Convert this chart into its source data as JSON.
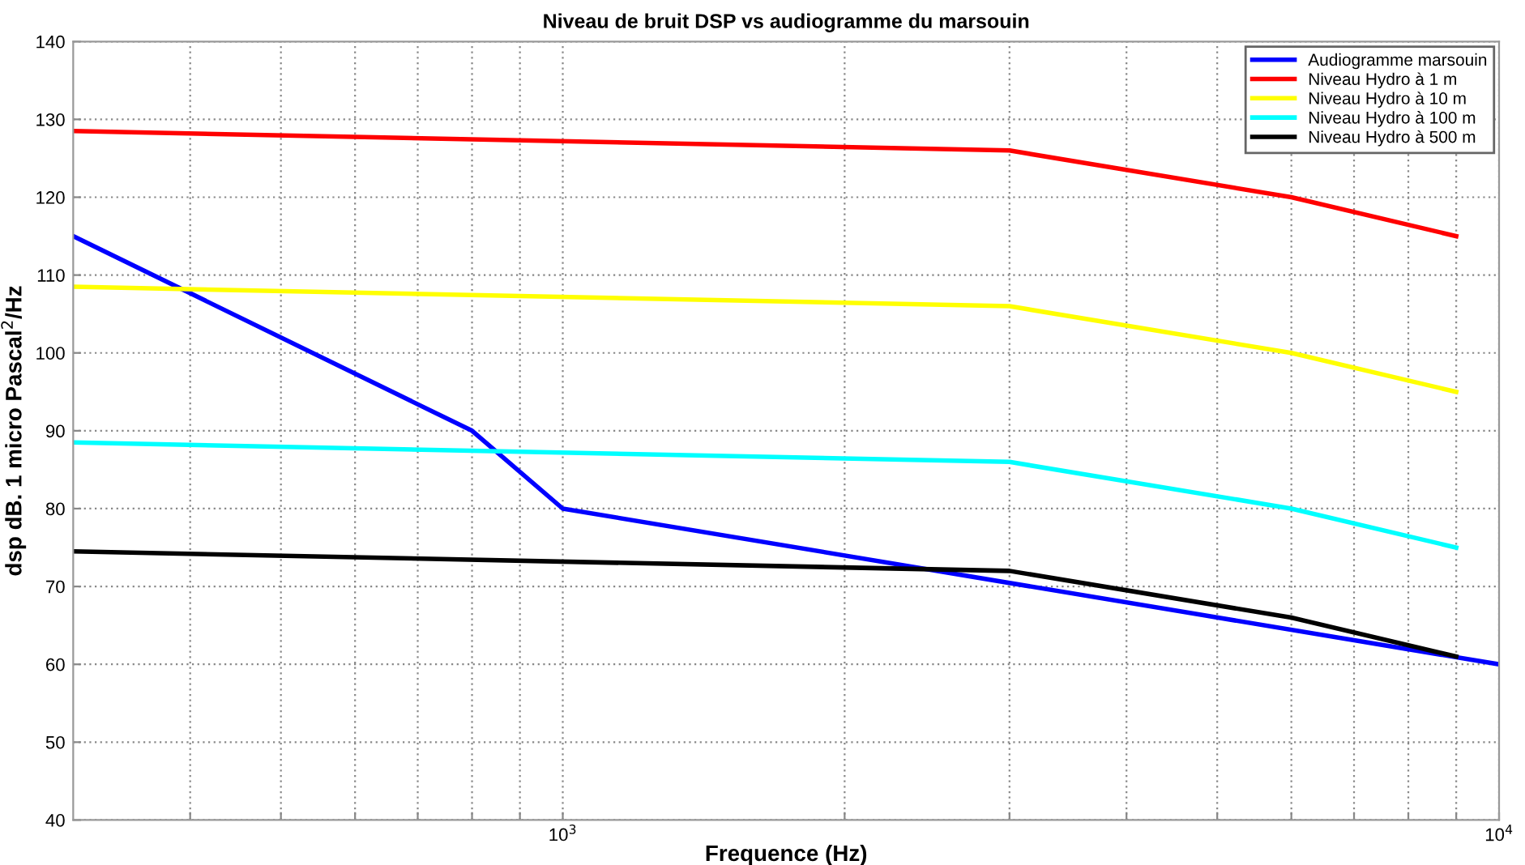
{
  "chart_data": {
    "type": "line",
    "title": "Niveau de bruit DSP vs audiogramme du marsouin",
    "xlabel": "Frequence (Hz)",
    "ylabel": "dsp dB. 1 micro Pascal$^{2}$/Hz",
    "log": "x",
    "xlim": [
      300,
      10000
    ],
    "ylim": [
      40,
      140
    ],
    "xticks": [
      {
        "value": 400,
        "label": null
      },
      {
        "value": 500,
        "label": null
      },
      {
        "value": 600,
        "label": null
      },
      {
        "value": 700,
        "label": null
      },
      {
        "value": 800,
        "label": null
      },
      {
        "value": 900,
        "label": null
      },
      {
        "value": 1000,
        "label": "10$^{3}$"
      },
      {
        "value": 2000,
        "label": null
      },
      {
        "value": 3000,
        "label": null
      },
      {
        "value": 4000,
        "label": null
      },
      {
        "value": 5000,
        "label": null
      },
      {
        "value": 6000,
        "label": null
      },
      {
        "value": 7000,
        "label": null
      },
      {
        "value": 8000,
        "label": null
      },
      {
        "value": 9000,
        "label": null
      },
      {
        "value": 10000,
        "label": "10$^{4}$"
      }
    ],
    "yticks": [
      40,
      50,
      60,
      70,
      80,
      90,
      100,
      110,
      120,
      130,
      140
    ],
    "grid": true,
    "legend": "top right",
    "line_style": "solid",
    "marker": "none",
    "series": [
      {
        "name": "Audiogramme marsouin",
        "color": "#0000ff",
        "x": [
          300,
          800,
          1000,
          10000
        ],
        "values": [
          115,
          90,
          80,
          60
        ]
      },
      {
        "name": "Niveau Hydro à 1 m",
        "color": "#ff0000",
        "x": [
          300,
          3000,
          6000,
          9000
        ],
        "values": [
          128.5,
          126,
          120,
          115
        ]
      },
      {
        "name": "Niveau Hydro à 10 m",
        "color": "#ffff00",
        "x": [
          300,
          3000,
          6000,
          9000
        ],
        "values": [
          108.5,
          106,
          100,
          95
        ]
      },
      {
        "name": "Niveau Hydro à 100 m",
        "color": "#00ffff",
        "x": [
          300,
          3000,
          6000,
          9000
        ],
        "values": [
          88.5,
          86,
          80,
          75
        ]
      },
      {
        "name": "Niveau Hydro à 500 m",
        "color": "#000000",
        "x": [
          300,
          3000,
          6000,
          9000
        ],
        "values": [
          74.5,
          72,
          66,
          61
        ]
      }
    ]
  }
}
